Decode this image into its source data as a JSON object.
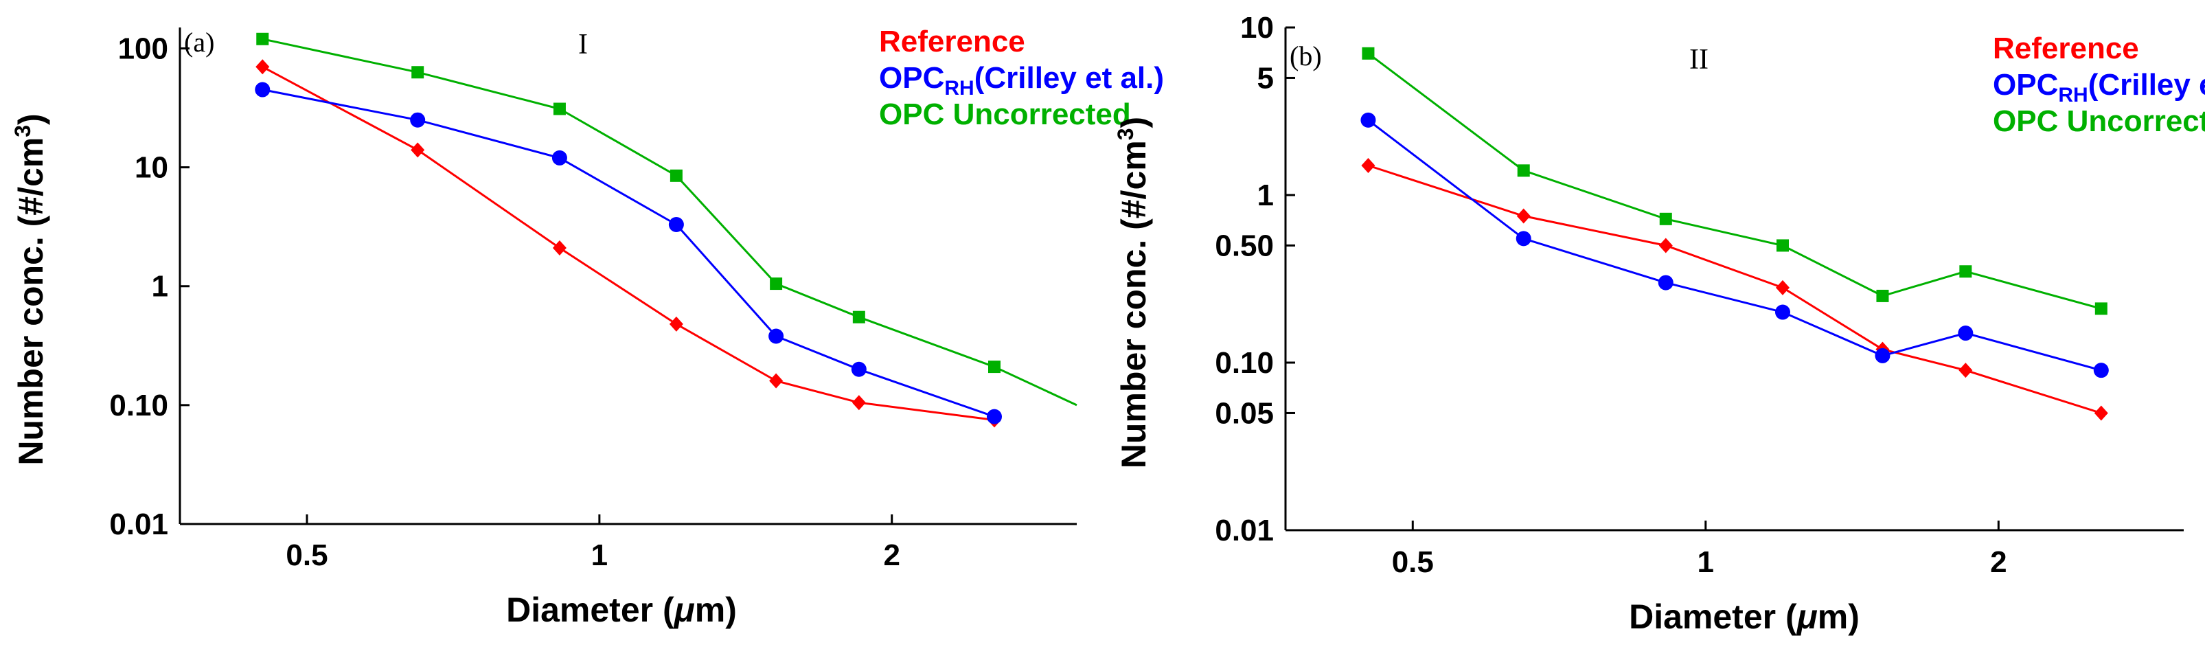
{
  "chart_data": [
    {
      "type": "line",
      "panel_label": "(a)",
      "annotation": "I",
      "xlabel": {
        "pre": "Diameter (",
        "mu": "μ",
        "post": "m)"
      },
      "ylabel": {
        "pre": "Number conc. (#/cm",
        "sup": "3",
        "post": ")"
      },
      "x_scale": "log",
      "y_scale": "log",
      "xlim": [
        0.37,
        3.1
      ],
      "ylim": [
        0.01,
        150
      ],
      "x_ticks": [
        0.5,
        1,
        2
      ],
      "x_tick_labels": [
        "0.5",
        "1",
        "2"
      ],
      "y_ticks": [
        0.01,
        0.1,
        1,
        10,
        100
      ],
      "y_tick_labels": [
        "0.01",
        "0.10",
        "1",
        "10",
        "100"
      ],
      "legend_position": "top-right",
      "series": [
        {
          "name": "Reference",
          "legend": {
            "pre": "Reference"
          },
          "color": "#ff0000",
          "marker": "diamond",
          "x": [
            0.45,
            0.65,
            0.91,
            1.2,
            1.52,
            1.85,
            2.55
          ],
          "y": [
            70,
            14,
            2.1,
            0.48,
            0.16,
            0.105,
            0.075
          ]
        },
        {
          "name": "OPC_RH (Crilley et al.)",
          "legend": {
            "pre": "OPC",
            "sub": "RH",
            "post": "(Crilley et al.)"
          },
          "color": "#0000ff",
          "marker": "circle",
          "x": [
            0.45,
            0.65,
            0.91,
            1.2,
            1.52,
            1.85,
            2.55
          ],
          "y": [
            45,
            25,
            12,
            3.3,
            0.38,
            0.2,
            0.08
          ]
        },
        {
          "name": "OPC Uncorrected",
          "legend": {
            "pre": "OPC Uncorrected"
          },
          "color": "#00b000",
          "marker": "square",
          "x": [
            0.45,
            0.65,
            0.91,
            1.2,
            1.52,
            1.85,
            2.55,
            3.1
          ],
          "y": [
            120,
            63,
            31,
            8.5,
            1.05,
            0.55,
            0.21,
            0.1
          ],
          "markers_shown": 7
        }
      ]
    },
    {
      "type": "line",
      "panel_label": "(b)",
      "annotation": "II",
      "xlabel": {
        "pre": "Diameter (",
        "mu": "μ",
        "post": "m)"
      },
      "ylabel": {
        "pre": "Number conc. (#/cm",
        "sup": "3",
        "post": ")"
      },
      "x_scale": "log",
      "y_scale": "log",
      "xlim": [
        0.37,
        3.1
      ],
      "ylim": [
        0.01,
        10
      ],
      "x_ticks": [
        0.5,
        1,
        2
      ],
      "x_tick_labels": [
        "0.5",
        "1",
        "2"
      ],
      "y_ticks": [
        0.01,
        0.05,
        0.1,
        0.5,
        1,
        5,
        10
      ],
      "y_tick_labels": [
        "0.01",
        "0.05",
        "0.10",
        "0.50",
        "1",
        "5",
        "10"
      ],
      "legend_position": "top-right",
      "series": [
        {
          "name": "Reference",
          "legend": {
            "pre": "Reference"
          },
          "color": "#ff0000",
          "marker": "diamond",
          "x": [
            0.45,
            0.65,
            0.91,
            1.2,
            1.52,
            1.85,
            2.55
          ],
          "y": [
            1.5,
            0.75,
            0.5,
            0.28,
            0.12,
            0.09,
            0.05
          ]
        },
        {
          "name": "OPC_RH (Crilley et al.)",
          "legend": {
            "pre": "OPC",
            "sub": "RH",
            "post": "(Crilley et al.)"
          },
          "color": "#0000ff",
          "marker": "circle",
          "x": [
            0.45,
            0.65,
            0.91,
            1.2,
            1.52,
            1.85,
            2.55
          ],
          "y": [
            2.8,
            0.55,
            0.3,
            0.2,
            0.11,
            0.15,
            0.09
          ]
        },
        {
          "name": "OPC Uncorrected",
          "legend": {
            "pre": "OPC Uncorrected"
          },
          "color": "#00b000",
          "marker": "square",
          "x": [
            0.45,
            0.65,
            0.91,
            1.2,
            1.52,
            1.85,
            2.55
          ],
          "y": [
            7,
            1.4,
            0.72,
            0.5,
            0.25,
            0.35,
            0.21
          ]
        }
      ]
    }
  ]
}
